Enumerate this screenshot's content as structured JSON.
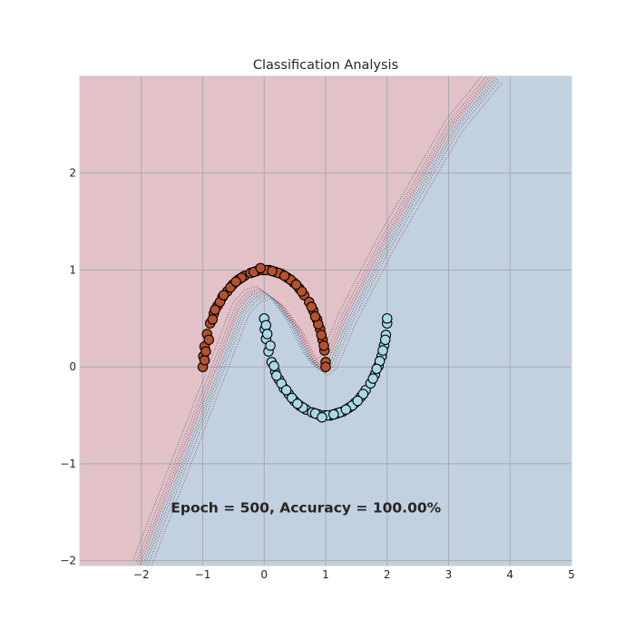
{
  "chart_data": {
    "type": "scatter",
    "title": "Classification Analysis",
    "xlabel": "",
    "ylabel": "",
    "xlim": [
      -3,
      5
    ],
    "ylim": [
      -2.05,
      3
    ],
    "x_ticks": [
      -2,
      -1,
      0,
      1,
      2,
      3,
      4,
      5
    ],
    "y_ticks": [
      -2,
      -1,
      0,
      1,
      2
    ],
    "x_tick_labels": [
      "−2",
      "−1",
      "0",
      "1",
      "2",
      "3",
      "4",
      "5"
    ],
    "y_tick_labels": [
      "−2",
      "−1",
      "0",
      "1",
      "2"
    ],
    "grid": true,
    "annotation": "Epoch = 500, Accuracy = 100.00%",
    "decision_regions": {
      "class_0_color": "#e2c1c7",
      "class_1_color": "#c2d1e0",
      "boundary": [
        [
          -2.0,
          -2.05
        ],
        [
          -0.38,
          0.6
        ],
        [
          -0.2,
          0.73
        ],
        [
          0.0,
          0.77
        ],
        [
          0.2,
          0.68
        ],
        [
          0.5,
          0.42
        ],
        [
          0.75,
          0.1
        ],
        [
          0.9,
          -0.03
        ],
        [
          1.05,
          0.05
        ],
        [
          1.35,
          0.5
        ],
        [
          2.0,
          1.3
        ],
        [
          3.1,
          2.5
        ],
        [
          3.75,
          3.0
        ]
      ]
    },
    "series": [
      {
        "class": 0,
        "color": "#b5522d",
        "points": [
          [
            -1.0,
            0.0
          ],
          [
            -0.99,
            0.11
          ],
          [
            -0.97,
            0.21
          ],
          [
            -0.93,
            0.34
          ],
          [
            -0.88,
            0.45
          ],
          [
            -0.82,
            0.55
          ],
          [
            -0.76,
            0.63
          ],
          [
            -0.68,
            0.72
          ],
          [
            -0.6,
            0.78
          ],
          [
            -0.51,
            0.85
          ],
          [
            -0.42,
            0.9
          ],
          [
            -0.32,
            0.94
          ],
          [
            -0.22,
            0.97
          ],
          [
            -0.12,
            0.99
          ],
          [
            -0.02,
            1.0
          ],
          [
            0.08,
            1.0
          ],
          [
            0.18,
            0.98
          ],
          [
            0.28,
            0.96
          ],
          [
            0.38,
            0.92
          ],
          [
            0.48,
            0.87
          ],
          [
            0.57,
            0.81
          ],
          [
            0.65,
            0.74
          ],
          [
            0.73,
            0.67
          ],
          [
            0.8,
            0.58
          ],
          [
            0.86,
            0.49
          ],
          [
            0.91,
            0.39
          ],
          [
            0.95,
            0.28
          ],
          [
            0.98,
            0.17
          ],
          [
            1.0,
            0.05
          ],
          [
            -0.97,
            0.07
          ],
          [
            -0.9,
            0.28
          ],
          [
            -0.84,
            0.49
          ],
          [
            -0.72,
            0.67
          ],
          [
            -0.55,
            0.82
          ],
          [
            -0.37,
            0.92
          ],
          [
            -0.17,
            0.98
          ],
          [
            0.03,
            1.0
          ],
          [
            0.23,
            0.97
          ],
          [
            0.43,
            0.9
          ],
          [
            0.61,
            0.78
          ],
          [
            0.77,
            0.62
          ],
          [
            0.88,
            0.44
          ],
          [
            0.97,
            0.22
          ],
          [
            1.0,
            0.0
          ],
          [
            -0.95,
            0.16
          ],
          [
            -0.8,
            0.59
          ],
          [
            -0.46,
            0.88
          ],
          [
            0.13,
            0.99
          ],
          [
            0.52,
            0.85
          ],
          [
            0.83,
            0.52
          ],
          [
            0.93,
            0.33
          ],
          [
            -0.06,
            1.02
          ],
          [
            0.33,
            0.94
          ],
          [
            -0.66,
            0.74
          ]
        ]
      },
      {
        "class": 1,
        "color": "#aad8e8",
        "points": [
          [
            0.0,
            0.5
          ],
          [
            0.01,
            0.39
          ],
          [
            0.03,
            0.29
          ],
          [
            0.07,
            0.16
          ],
          [
            0.12,
            0.05
          ],
          [
            0.18,
            -0.05
          ],
          [
            0.24,
            -0.13
          ],
          [
            0.32,
            -0.22
          ],
          [
            0.4,
            -0.28
          ],
          [
            0.49,
            -0.35
          ],
          [
            0.58,
            -0.4
          ],
          [
            0.68,
            -0.44
          ],
          [
            0.78,
            -0.47
          ],
          [
            0.88,
            -0.49
          ],
          [
            0.98,
            -0.5
          ],
          [
            1.08,
            -0.5
          ],
          [
            1.18,
            -0.48
          ],
          [
            1.28,
            -0.46
          ],
          [
            1.38,
            -0.42
          ],
          [
            1.48,
            -0.37
          ],
          [
            1.57,
            -0.31
          ],
          [
            1.65,
            -0.24
          ],
          [
            1.73,
            -0.17
          ],
          [
            1.8,
            -0.08
          ],
          [
            1.86,
            0.01
          ],
          [
            1.91,
            0.11
          ],
          [
            1.95,
            0.22
          ],
          [
            1.98,
            0.33
          ],
          [
            2.0,
            0.45
          ],
          [
            0.03,
            0.43
          ],
          [
            0.1,
            0.22
          ],
          [
            0.16,
            0.01
          ],
          [
            0.28,
            -0.17
          ],
          [
            0.45,
            -0.32
          ],
          [
            0.63,
            -0.42
          ],
          [
            0.83,
            -0.48
          ],
          [
            1.03,
            -0.5
          ],
          [
            1.23,
            -0.47
          ],
          [
            1.43,
            -0.4
          ],
          [
            1.61,
            -0.28
          ],
          [
            1.77,
            -0.12
          ],
          [
            1.88,
            0.06
          ],
          [
            1.97,
            0.28
          ],
          [
            2.0,
            0.5
          ],
          [
            0.05,
            0.34
          ],
          [
            0.2,
            -0.09
          ],
          [
            0.54,
            -0.38
          ],
          [
            1.13,
            -0.49
          ],
          [
            1.52,
            -0.35
          ],
          [
            1.83,
            -0.02
          ],
          [
            1.93,
            0.17
          ],
          [
            0.94,
            -0.52
          ],
          [
            1.33,
            -0.44
          ],
          [
            0.36,
            -0.24
          ]
        ]
      }
    ]
  }
}
